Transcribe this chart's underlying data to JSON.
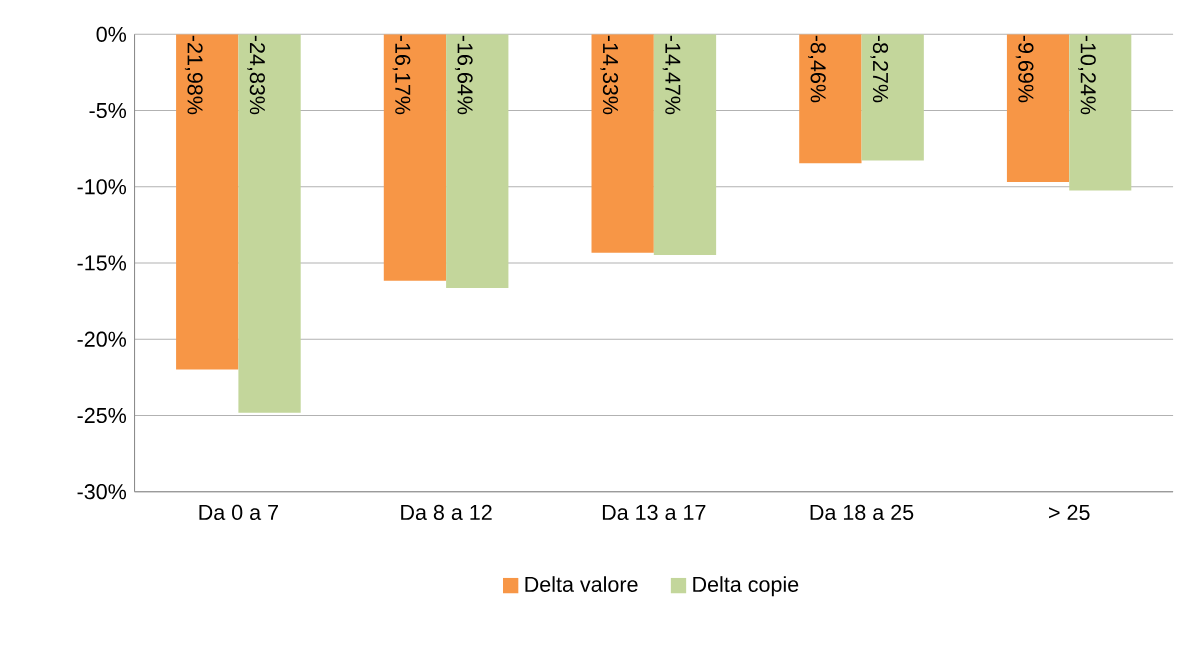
{
  "chart_data": {
    "type": "bar",
    "categories": [
      "Da 0 a 7",
      "Da 8 a 12",
      "Da 13 a 17",
      "Da 18 a 25",
      "> 25"
    ],
    "series": [
      {
        "name": "Delta valore",
        "color": "#f79646",
        "values": [
          -21.98,
          -16.17,
          -14.33,
          -8.46,
          -9.69
        ],
        "value_labels": [
          "-21,98%",
          "-16,17%",
          "-14,33%",
          "-8,46%",
          "-9,69%"
        ]
      },
      {
        "name": "Delta copie",
        "color": "#c3d69b",
        "values": [
          -24.83,
          -16.64,
          -14.47,
          -8.27,
          -10.24
        ],
        "value_labels": [
          "-24,83%",
          "-16,64%",
          "-14,47%",
          "-8,27%",
          "-10,24%"
        ]
      }
    ],
    "ylim": [
      -30,
      0
    ],
    "yticks": [
      {
        "value": 0,
        "label": "0%"
      },
      {
        "value": -5,
        "label": "-5%"
      },
      {
        "value": -10,
        "label": "-10%"
      },
      {
        "value": -15,
        "label": "-15%"
      },
      {
        "value": -20,
        "label": "-20%"
      },
      {
        "value": -25,
        "label": "-25%"
      },
      {
        "value": -30,
        "label": "-30%"
      }
    ],
    "grid": "y",
    "legend": "bottom"
  }
}
